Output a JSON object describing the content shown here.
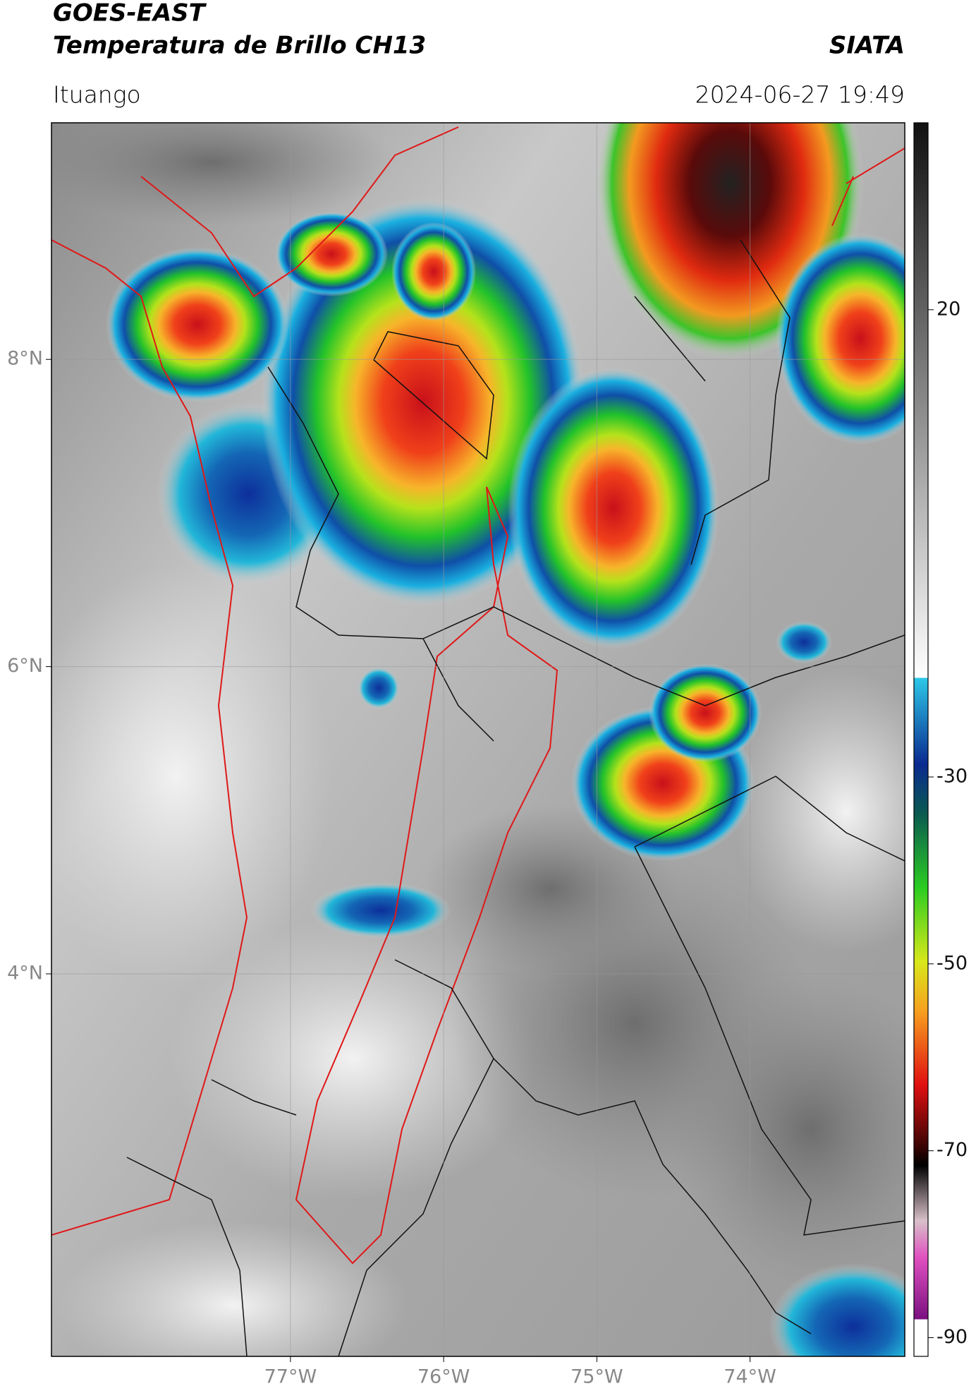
{
  "header": {
    "title": "GOES-EAST",
    "subtitle": "Temperatura de Brillo CH13",
    "source": "SIATA",
    "location": "Ituango",
    "datetime": "2024-06-27 19:49"
  },
  "map": {
    "xlim": [
      -78.56,
      -72.99
    ],
    "ylim": [
      1.51,
      9.54
    ],
    "xticks": [
      {
        "value": -77,
        "label": "77°W"
      },
      {
        "value": -76,
        "label": "76°W"
      },
      {
        "value": -75,
        "label": "75°W"
      },
      {
        "value": -74,
        "label": "74°W"
      }
    ],
    "yticks": [
      {
        "value": 8,
        "label": "8°N"
      },
      {
        "value": 6,
        "label": "6°N"
      },
      {
        "value": 4,
        "label": "4°N"
      }
    ],
    "grid": true
  },
  "colorbar": {
    "clim": [
      -92,
      40
    ],
    "ticks": [
      20,
      -30,
      -50,
      -70,
      -90
    ]
  }
}
